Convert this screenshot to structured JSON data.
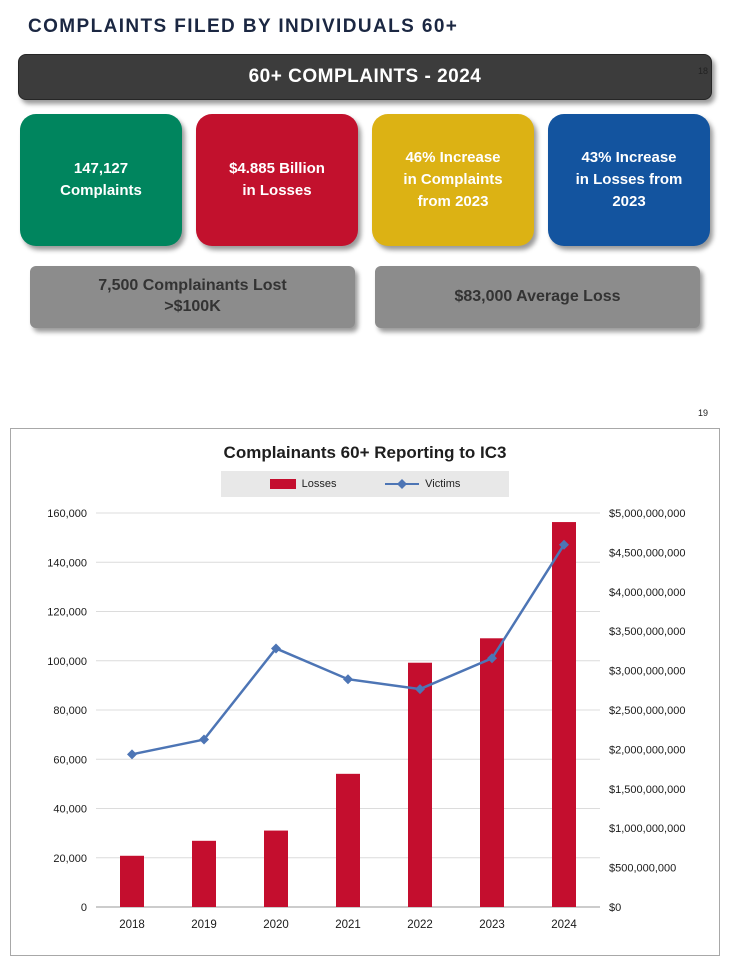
{
  "page": {
    "title": "COMPLAINTS FILED BY INDIVIDUALS 60+",
    "page_number_top": "18",
    "page_number_bottom": "19"
  },
  "banner": {
    "label": "60+ COMPLAINTS - 2024",
    "bg": "#3c3c3c"
  },
  "stat_cards": [
    {
      "lines": [
        "147,127",
        "Complaints"
      ],
      "bg": "#00855e"
    },
    {
      "lines": [
        "$4.885 Billion",
        "in Losses"
      ],
      "bg": "#c2112d"
    },
    {
      "lines": [
        "46% Increase",
        "in Complaints",
        "from 2023"
      ],
      "bg": "#dcb214"
    },
    {
      "lines": [
        "43% Increase",
        "in Losses from",
        "2023"
      ],
      "bg": "#13549f"
    }
  ],
  "gray_cards": [
    {
      "lines": [
        "7,500 Complainants Lost",
        ">$100K"
      ]
    },
    {
      "lines": [
        "$83,000 Average Loss"
      ]
    }
  ],
  "chart_data": {
    "type": "bar+line",
    "title": "Complainants 60+ Reporting to IC3",
    "categories": [
      "2018",
      "2019",
      "2020",
      "2021",
      "2022",
      "2023",
      "2024"
    ],
    "series": [
      {
        "name": "Losses",
        "type": "bar",
        "axis": "right",
        "color": "#c40e2e",
        "values": [
          650000000,
          840000000,
          970000000,
          1690000000,
          3100000000,
          3410000000,
          4885000000
        ]
      },
      {
        "name": "Victims",
        "type": "line",
        "axis": "left",
        "color": "#4d75b5",
        "values": [
          62000,
          68000,
          105000,
          92500,
          88500,
          101000,
          147127
        ]
      }
    ],
    "left_axis": {
      "min": 0,
      "max": 160000,
      "step": 20000
    },
    "right_axis": {
      "min": 0,
      "max": 5000000000,
      "step": 500000000,
      "format": "$"
    },
    "legend_position": "top-center",
    "grid": true
  }
}
